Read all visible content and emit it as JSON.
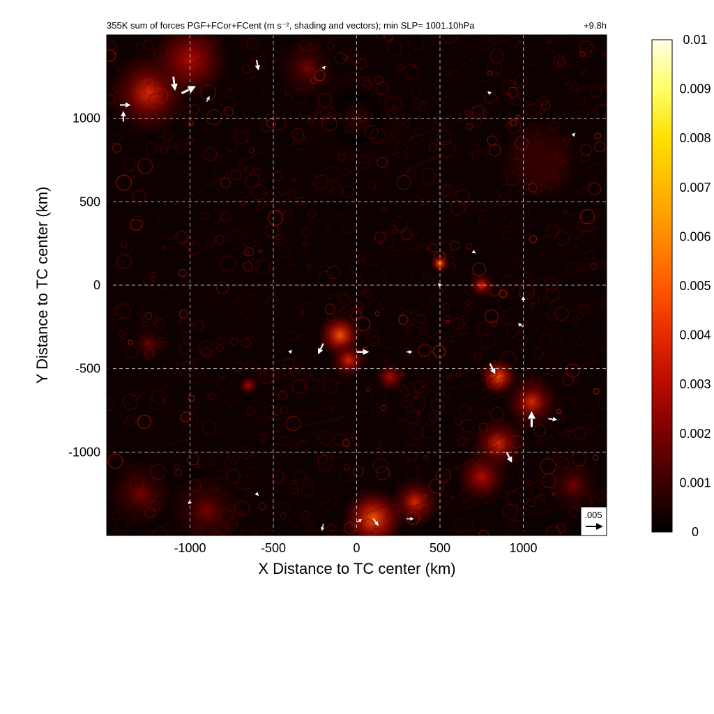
{
  "chart_data": {
    "type": "heatmap",
    "title": "355K sum of forces PGF+FCor+FCent (m s⁻², shading and vectors); min SLP= 1001.10hPa",
    "time_label": "+9.8h",
    "xlabel": "X Distance to TC center (km)",
    "ylabel": "Y Distance to TC center (km)",
    "xlim": [
      -1500,
      1500
    ],
    "ylim": [
      -1500,
      1500
    ],
    "x_ticks": [
      "-1000",
      "-500",
      "0",
      "500",
      "1000"
    ],
    "x_tick_values": [
      -1000,
      -500,
      0,
      500,
      1000
    ],
    "y_ticks": [
      "1000",
      "500",
      "0",
      "-500",
      "-1000"
    ],
    "y_tick_values": [
      1000,
      500,
      0,
      -500,
      -1000
    ],
    "grid": "dashed",
    "colorbar": {
      "min": 0,
      "max": 0.01,
      "labels": [
        "0.01",
        "0.009",
        "0.008",
        "0.007",
        "0.006",
        "0.005",
        "0.004",
        "0.003",
        "0.002",
        "0.001",
        "0"
      ],
      "label_values": [
        0.01,
        0.009,
        0.008,
        0.007,
        0.006,
        0.005,
        0.004,
        0.003,
        0.002,
        0.001,
        0
      ],
      "colormap": [
        "#000000",
        "#3a0000",
        "#7a0000",
        "#b80a00",
        "#e62a00",
        "#ff5a00",
        "#ff8c00",
        "#ffb800",
        "#ffe000",
        "#ffff66",
        "#ffffe8"
      ]
    },
    "reference_vector": {
      "label": ".005",
      "value": 0.005
    },
    "intense_regions": [
      {
        "x": -1250,
        "y": 1150,
        "r": 260,
        "value": 0.004
      },
      {
        "x": -1000,
        "y": 1350,
        "r": 250,
        "value": 0.003
      },
      {
        "x": -300,
        "y": 1300,
        "r": 180,
        "value": 0.0015
      },
      {
        "x": -100,
        "y": -300,
        "r": 140,
        "value": 0.005
      },
      {
        "x": -50,
        "y": -450,
        "r": 120,
        "value": 0.004
      },
      {
        "x": 200,
        "y": -550,
        "r": 90,
        "value": 0.003
      },
      {
        "x": 500,
        "y": 130,
        "r": 60,
        "value": 0.006
      },
      {
        "x": 750,
        "y": 0,
        "r": 80,
        "value": 0.004
      },
      {
        "x": 850,
        "y": -550,
        "r": 120,
        "value": 0.005
      },
      {
        "x": 1050,
        "y": -700,
        "r": 170,
        "value": 0.004
      },
      {
        "x": 850,
        "y": -950,
        "r": 170,
        "value": 0.004
      },
      {
        "x": 750,
        "y": -1150,
        "r": 160,
        "value": 0.003
      },
      {
        "x": 100,
        "y": -1400,
        "r": 200,
        "value": 0.005
      },
      {
        "x": 350,
        "y": -1300,
        "r": 160,
        "value": 0.004
      },
      {
        "x": -900,
        "y": -1350,
        "r": 220,
        "value": 0.002
      },
      {
        "x": -1300,
        "y": -1250,
        "r": 200,
        "value": 0.002
      },
      {
        "x": 1300,
        "y": -1200,
        "r": 160,
        "value": 0.002
      },
      {
        "x": -650,
        "y": -600,
        "r": 60,
        "value": 0.003
      },
      {
        "x": -1250,
        "y": -350,
        "r": 100,
        "value": 0.0015
      },
      {
        "x": 1100,
        "y": 750,
        "r": 250,
        "value": 0.0012
      },
      {
        "x": 0,
        "y": 1000,
        "r": 300,
        "value": 0.0008
      }
    ],
    "vectors": [
      {
        "x": -1420,
        "y": 1080,
        "u": 0.003,
        "v": 0
      },
      {
        "x": -1400,
        "y": 980,
        "u": 0,
        "v": 0.003
      },
      {
        "x": -1100,
        "y": 1250,
        "u": 0.0005,
        "v": -0.004
      },
      {
        "x": -1050,
        "y": 1150,
        "u": 0.004,
        "v": 0.002
      },
      {
        "x": -900,
        "y": 1100,
        "u": 0.0008,
        "v": 0.0015
      },
      {
        "x": -600,
        "y": 1350,
        "u": 0.0005,
        "v": -0.003
      },
      {
        "x": -200,
        "y": 1300,
        "u": 0.0005,
        "v": 0.0005
      },
      {
        "x": 800,
        "y": 1150,
        "u": -0.0005,
        "v": 0.0004
      },
      {
        "x": 1300,
        "y": 900,
        "u": 0.0004,
        "v": 0.0004
      },
      {
        "x": -400,
        "y": -400,
        "u": 0.0004,
        "v": 0.0004
      },
      {
        "x": -200,
        "y": -350,
        "u": -0.0015,
        "v": -0.003
      },
      {
        "x": 0,
        "y": -400,
        "u": 0.0035,
        "v": 0
      },
      {
        "x": 300,
        "y": -400,
        "u": 0.0015,
        "v": 0
      },
      {
        "x": 800,
        "y": -470,
        "u": 0.0015,
        "v": -0.003
      },
      {
        "x": 1050,
        "y": -850,
        "u": 0,
        "v": 0.0045
      },
      {
        "x": 1150,
        "y": -800,
        "u": 0.0025,
        "v": -0.0003
      },
      {
        "x": 900,
        "y": -1000,
        "u": 0.0015,
        "v": -0.003
      },
      {
        "x": 1000,
        "y": -250,
        "u": -0.0015,
        "v": 0.001
      },
      {
        "x": 1000,
        "y": -100,
        "u": 0,
        "v": 0.0015
      },
      {
        "x": 0,
        "y": -1420,
        "u": 0.0015,
        "v": 0.0008
      },
      {
        "x": 300,
        "y": -1400,
        "u": 0.002,
        "v": 0
      },
      {
        "x": 100,
        "y": -1400,
        "u": 0.0015,
        "v": -0.002
      },
      {
        "x": -200,
        "y": -1430,
        "u": -0.0004,
        "v": -0.002
      },
      {
        "x": 700,
        "y": 200,
        "u": 0.0005,
        "v": -0.0003
      },
      {
        "x": 500,
        "y": 0,
        "u": -0.0004,
        "v": 0.0004
      },
      {
        "x": -1000,
        "y": -1300,
        "u": -0.0004,
        "v": -0.0004
      },
      {
        "x": -600,
        "y": -1250,
        "u": 0.0004,
        "v": -0.0004
      }
    ]
  }
}
